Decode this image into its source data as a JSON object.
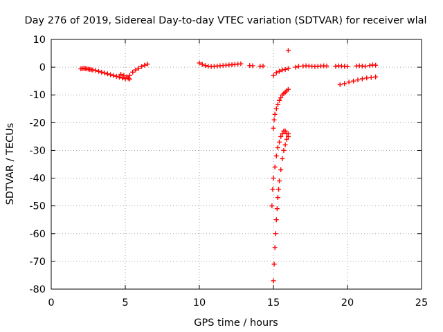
{
  "chart_data": {
    "type": "scatter",
    "title": "Day 276 of 2019, Sidereal Day-to-day VTEC variation (SDTVAR) for receiver wlal",
    "xlabel": "GPS time / hours",
    "ylabel": "SDTVAR / TECUs",
    "xlim": [
      0,
      25
    ],
    "ylim": [
      -80,
      10
    ],
    "xticks": [
      0,
      5,
      10,
      15,
      20,
      25
    ],
    "yticks": [
      10,
      0,
      -10,
      -20,
      -30,
      -40,
      -50,
      -60,
      -70,
      -80
    ],
    "xtick_labels": [
      "0",
      "5",
      "10",
      "15",
      "20",
      "25"
    ],
    "ytick_labels": [
      "10",
      "0",
      "-10",
      "-20",
      "-30",
      "-40",
      "-50",
      "-60",
      "-70",
      "-80"
    ],
    "grid": true,
    "marker": "plus",
    "color": "#ff0000",
    "series": [
      {
        "x": [
          2.0,
          2.1,
          2.2,
          2.3,
          2.4,
          2.5,
          2.6,
          2.7,
          2.8,
          3.0,
          3.2,
          3.4,
          3.6,
          3.8,
          4.0,
          4.2,
          4.4,
          4.6,
          4.8,
          5.0,
          5.2,
          5.3,
          5.5,
          5.7,
          5.9,
          6.1,
          6.3,
          6.5,
          4.7,
          4.9,
          5.1,
          5.3
        ],
        "y": [
          -0.6,
          -0.5,
          -0.4,
          -0.5,
          -0.6,
          -0.7,
          -0.8,
          -0.9,
          -1.0,
          -1.2,
          -1.5,
          -1.8,
          -2.1,
          -2.4,
          -2.7,
          -3.0,
          -3.3,
          -3.6,
          -3.9,
          -4.2,
          -4.0,
          -3.0,
          -1.8,
          -1.0,
          -0.4,
          0.2,
          0.7,
          1.1,
          -2.6,
          -3.0,
          -3.5,
          -4.3
        ]
      },
      {
        "x": [
          10.0,
          10.2,
          10.4,
          10.6,
          10.8,
          11.0,
          11.2,
          11.4,
          11.6,
          11.8,
          12.0,
          12.2,
          12.4,
          12.6,
          12.8,
          13.4,
          13.6,
          14.1,
          14.3
        ],
        "y": [
          1.5,
          1.0,
          0.6,
          0.3,
          0.2,
          0.3,
          0.4,
          0.5,
          0.6,
          0.7,
          0.8,
          0.9,
          1.0,
          1.1,
          1.2,
          0.6,
          0.5,
          0.3,
          0.4
        ]
      },
      {
        "x": [
          15.0,
          15.05,
          15.1,
          15.15,
          15.2,
          15.25,
          15.3,
          15.35,
          15.4,
          15.5,
          15.6,
          15.7,
          15.8,
          15.9,
          16.0
        ],
        "y": [
          -77,
          -71,
          -65,
          -60,
          -55,
          -51,
          -47,
          -44,
          -41,
          -37,
          -33,
          -30,
          -28,
          -26,
          -24
        ]
      },
      {
        "x": [
          14.9,
          14.95,
          15.0,
          15.1,
          15.2,
          15.3,
          15.4,
          15.5,
          15.6,
          15.7,
          15.8,
          15.9,
          16.0
        ],
        "y": [
          -50,
          -44,
          -40,
          -36,
          -32,
          -29,
          -27,
          -25,
          -24,
          -23,
          -23,
          -24,
          -25
        ]
      },
      {
        "x": [
          15.0,
          15.05,
          15.1,
          15.2,
          15.3,
          15.4,
          15.5,
          15.6,
          15.7,
          15.8,
          15.9,
          16.0
        ],
        "y": [
          -22,
          -19,
          -17,
          -15,
          -13.5,
          -12,
          -11,
          -10,
          -9.5,
          -9,
          -8.5,
          -8
        ]
      },
      {
        "x": [
          15.0,
          15.2,
          15.4,
          15.6,
          15.8,
          16.0
        ],
        "y": [
          -3,
          -2,
          -1.5,
          -1,
          -0.8,
          -0.5
        ]
      },
      {
        "x": [
          16.0
        ],
        "y": [
          6
        ]
      },
      {
        "x": [
          16.5,
          16.7,
          17.0,
          17.2,
          17.4,
          17.6,
          17.8,
          18.0,
          18.2,
          18.4,
          18.6,
          19.2,
          19.4,
          19.6,
          19.8,
          20.0,
          20.6,
          20.8,
          21.0,
          21.2,
          21.5,
          21.7,
          21.9
        ],
        "y": [
          0.0,
          0.3,
          0.4,
          0.5,
          0.4,
          0.3,
          0.2,
          0.3,
          0.4,
          0.5,
          0.4,
          0.3,
          0.5,
          0.4,
          0.3,
          0.2,
          0.4,
          0.5,
          0.4,
          0.3,
          0.6,
          0.8,
          0.7
        ]
      },
      {
        "x": [
          19.5,
          19.8,
          20.1,
          20.4,
          20.7,
          21.0,
          21.3,
          21.6,
          21.9
        ],
        "y": [
          -6.3,
          -5.9,
          -5.4,
          -5.0,
          -4.6,
          -4.2,
          -3.9,
          -3.7,
          -3.5
        ]
      }
    ]
  }
}
